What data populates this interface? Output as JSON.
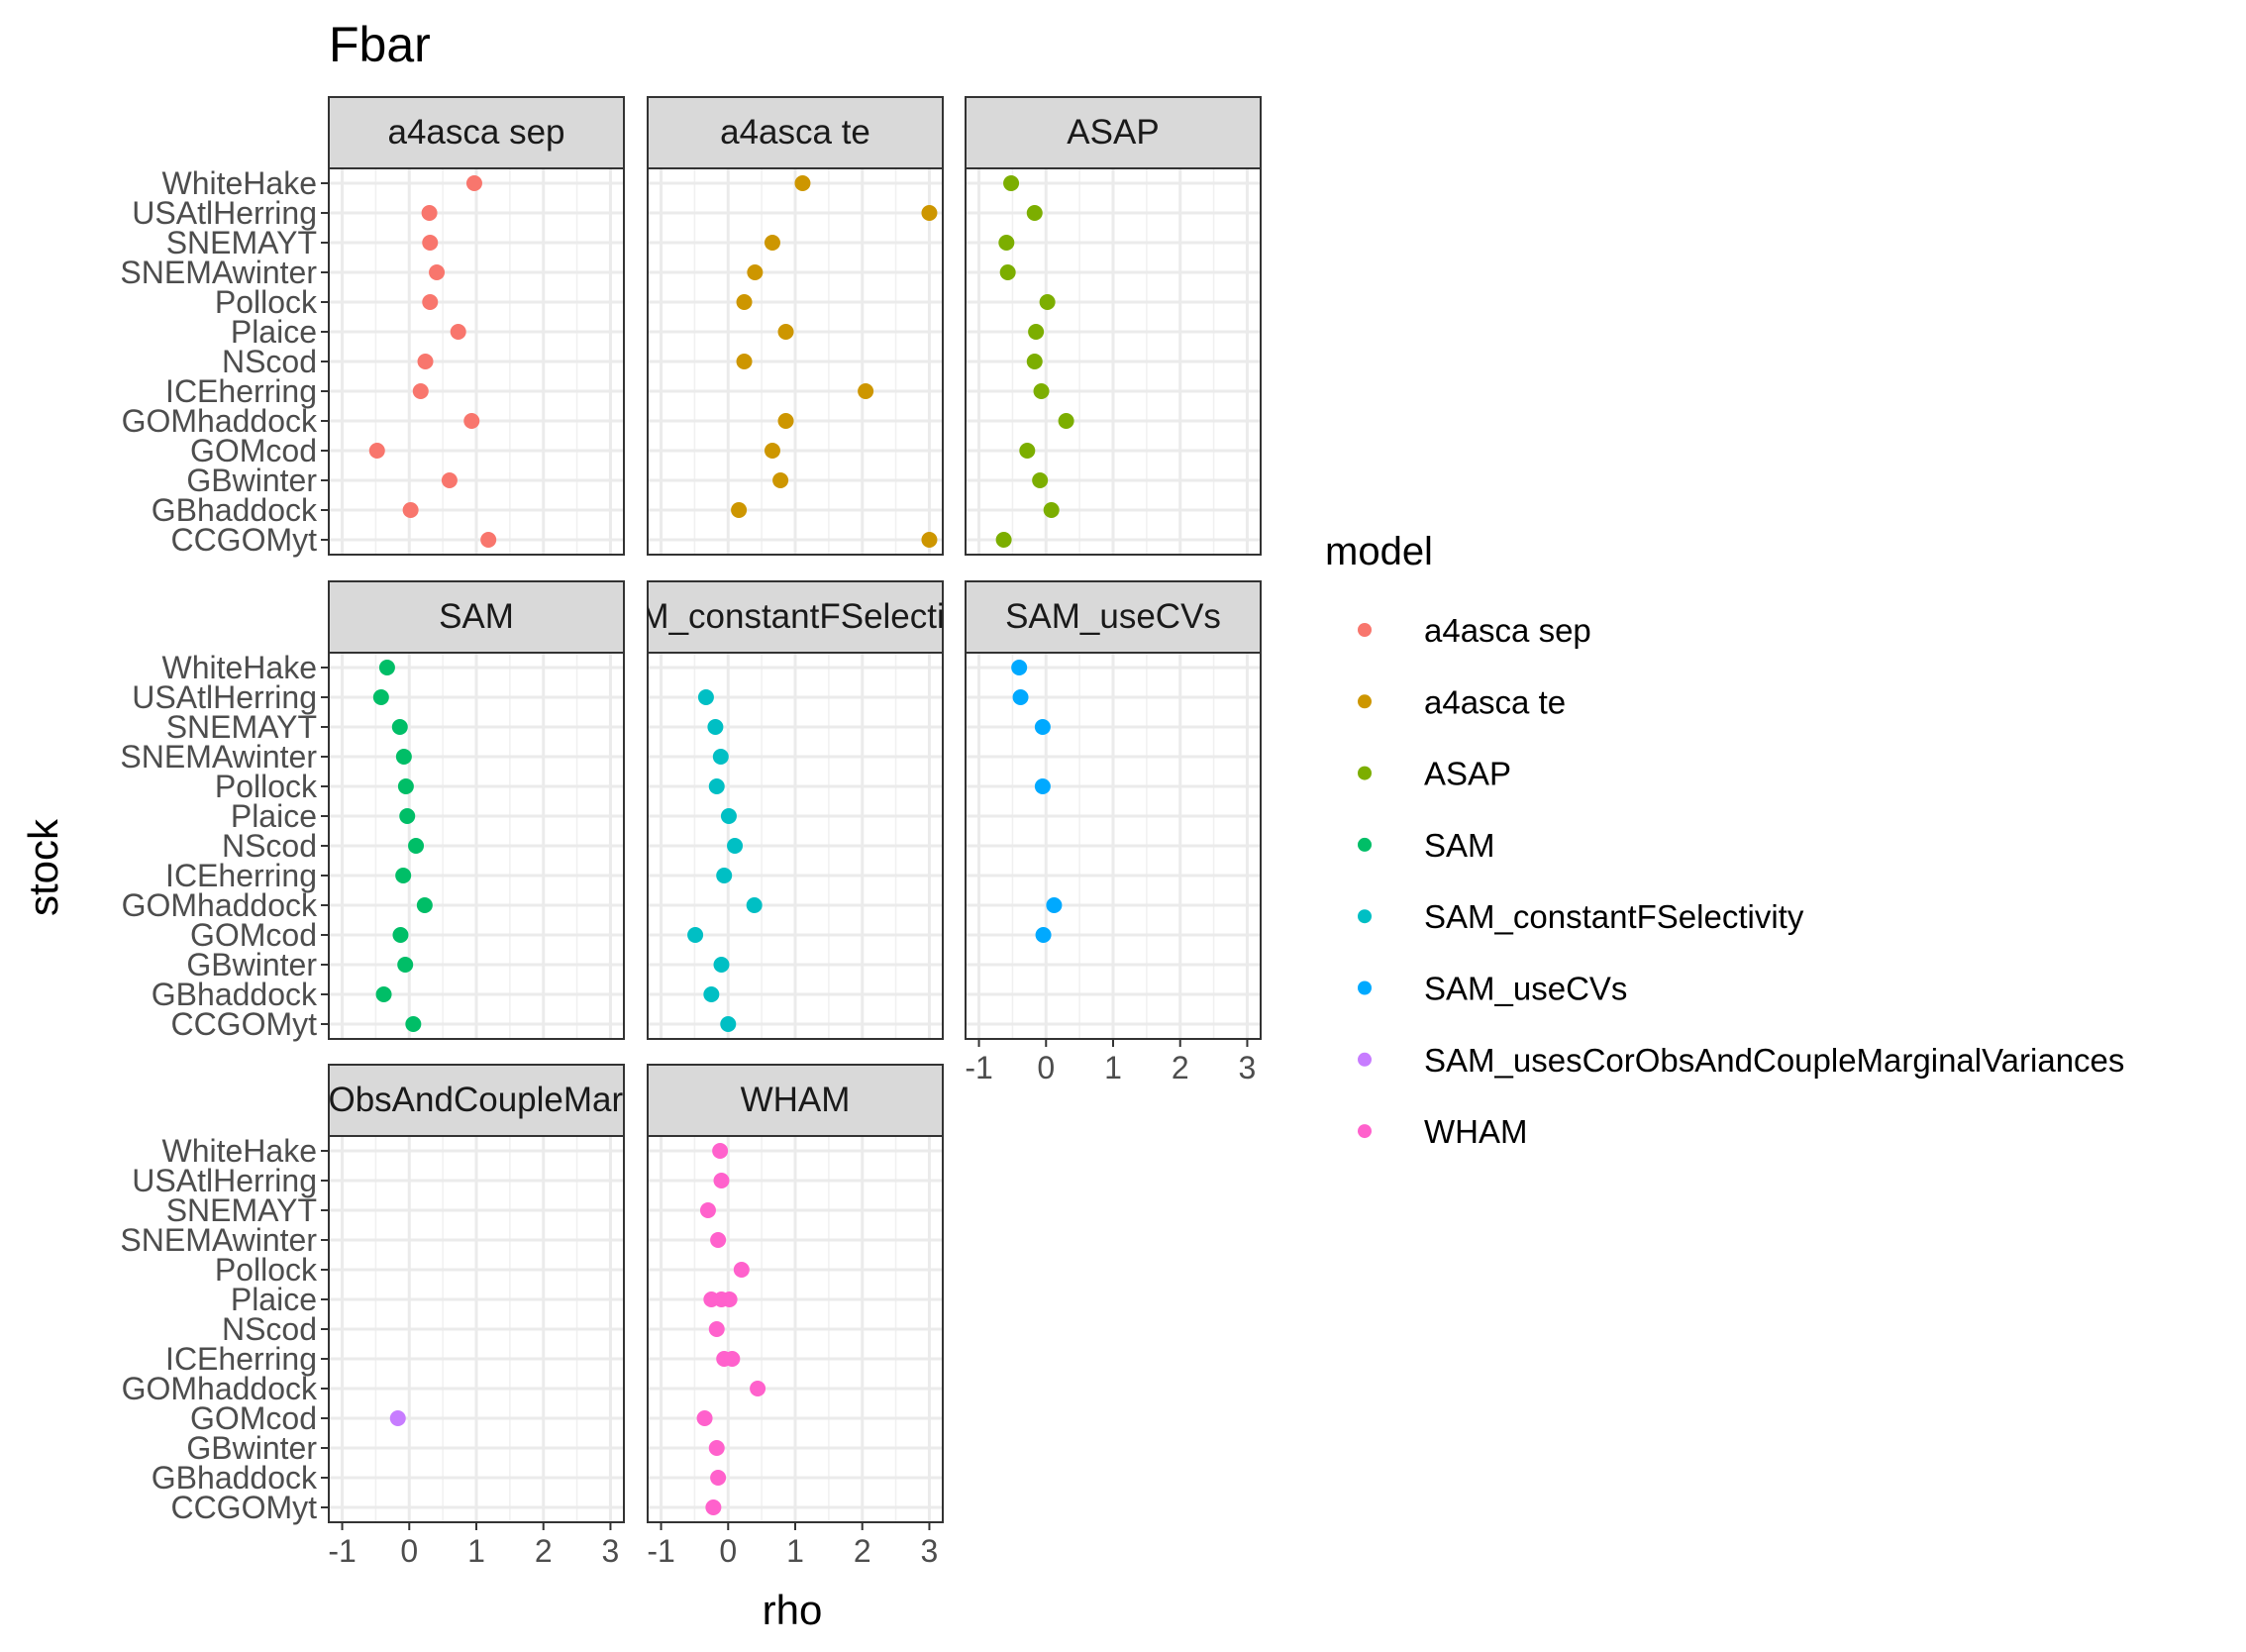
{
  "chart_data": {
    "type": "scatter",
    "title": "Fbar",
    "xlabel": "rho",
    "ylabel": "stock",
    "xlim": [
      -1.2,
      3.2
    ],
    "x_ticks": [
      -1,
      0,
      1,
      2,
      3
    ],
    "x_tick_labels": [
      "-1",
      "0",
      "1",
      "2",
      "3"
    ],
    "grid": true,
    "stocks": [
      "WhiteHake",
      "USAtlHerring",
      "SNEMAYT",
      "SNEMAwinter",
      "Pollock",
      "Plaice",
      "NScod",
      "ICEherring",
      "GOMhaddock",
      "GOMcod",
      "GBwinter",
      "GBhaddock",
      "CCGOMyt"
    ],
    "legend": {
      "title": "model",
      "placement": "right",
      "entries": [
        {
          "label": "a4asca sep",
          "color": "#F8766D"
        },
        {
          "label": "a4asca te",
          "color": "#CD9600"
        },
        {
          "label": "ASAP",
          "color": "#7CAE00"
        },
        {
          "label": "SAM",
          "color": "#00BE67"
        },
        {
          "label": "SAM_constantFSelectivity",
          "color": "#00BFC4"
        },
        {
          "label": "SAM_useCVs",
          "color": "#00A9FF"
        },
        {
          "label": "SAM_usesCorObsAndCoupleMarginalVariances",
          "color": "#C77CFF"
        },
        {
          "label": "WHAM",
          "color": "#FF61CC"
        }
      ]
    },
    "panels": [
      {
        "strip": "a4asca sep",
        "color": "#F8766D",
        "points": [
          [
            "WhiteHake",
            0.97
          ],
          [
            "USAtlHerring",
            0.3
          ],
          [
            "SNEMAYT",
            0.31
          ],
          [
            "SNEMAwinter",
            0.41
          ],
          [
            "Pollock",
            0.31
          ],
          [
            "Plaice",
            0.73
          ],
          [
            "NScod",
            0.24
          ],
          [
            "ICEherring",
            0.17
          ],
          [
            "GOMhaddock",
            0.93
          ],
          [
            "GOMcod",
            -0.48
          ],
          [
            "GBwinter",
            0.6
          ],
          [
            "GBhaddock",
            0.02
          ],
          [
            "CCGOMyt",
            1.18
          ]
        ]
      },
      {
        "strip": "a4asca te",
        "color": "#CD9600",
        "points": [
          [
            "WhiteHake",
            1.11
          ],
          [
            "USAtlHerring",
            3.0
          ],
          [
            "SNEMAYT",
            0.66
          ],
          [
            "SNEMAwinter",
            0.4
          ],
          [
            "Pollock",
            0.24
          ],
          [
            "Plaice",
            0.86
          ],
          [
            "NScod",
            0.24
          ],
          [
            "ICEherring",
            2.05
          ],
          [
            "GOMhaddock",
            0.86
          ],
          [
            "GOMcod",
            0.66
          ],
          [
            "GBwinter",
            0.78
          ],
          [
            "GBhaddock",
            0.16
          ],
          [
            "CCGOMyt",
            3.0
          ]
        ]
      },
      {
        "strip": "ASAP",
        "color": "#7CAE00",
        "points": [
          [
            "WhiteHake",
            -0.52
          ],
          [
            "USAtlHerring",
            -0.17
          ],
          [
            "SNEMAYT",
            -0.59
          ],
          [
            "SNEMAwinter",
            -0.57
          ],
          [
            "Pollock",
            0.02
          ],
          [
            "Plaice",
            -0.15
          ],
          [
            "NScod",
            -0.17
          ],
          [
            "ICEherring",
            -0.07
          ],
          [
            "GOMhaddock",
            0.3
          ],
          [
            "GOMcod",
            -0.28
          ],
          [
            "GBwinter",
            -0.09
          ],
          [
            "GBhaddock",
            0.08
          ],
          [
            "CCGOMyt",
            -0.63
          ]
        ]
      },
      {
        "strip": "SAM",
        "color": "#00BE67",
        "points": [
          [
            "WhiteHake",
            -0.33
          ],
          [
            "USAtlHerring",
            -0.42
          ],
          [
            "SNEMAYT",
            -0.14
          ],
          [
            "SNEMAwinter",
            -0.08
          ],
          [
            "Pollock",
            -0.05
          ],
          [
            "Plaice",
            -0.03
          ],
          [
            "NScod",
            0.1
          ],
          [
            "ICEherring",
            -0.09
          ],
          [
            "GOMhaddock",
            0.23
          ],
          [
            "GOMcod",
            -0.13
          ],
          [
            "GBwinter",
            -0.06
          ],
          [
            "GBhaddock",
            -0.38
          ],
          [
            "CCGOMyt",
            0.06
          ]
        ]
      },
      {
        "strip": "SAM_constantFSelectivity",
        "color": "#00BFC4",
        "points": [
          [
            "USAtlHerring",
            -0.33
          ],
          [
            "SNEMAYT",
            -0.19
          ],
          [
            "SNEMAwinter",
            -0.11
          ],
          [
            "Pollock",
            -0.17
          ],
          [
            "Plaice",
            0.01
          ],
          [
            "NScod",
            0.1
          ],
          [
            "ICEherring",
            -0.06
          ],
          [
            "GOMhaddock",
            0.39
          ],
          [
            "GOMcod",
            -0.49
          ],
          [
            "GBwinter",
            -0.1
          ],
          [
            "GBhaddock",
            -0.25
          ],
          [
            "CCGOMyt",
            0.0
          ]
        ]
      },
      {
        "strip": "SAM_useCVs",
        "color": "#00A9FF",
        "points": [
          [
            "WhiteHake",
            -0.4
          ],
          [
            "USAtlHerring",
            -0.38
          ],
          [
            "SNEMAYT",
            -0.05
          ],
          [
            "Pollock",
            -0.05
          ],
          [
            "GOMhaddock",
            0.12
          ],
          [
            "GOMcod",
            -0.04
          ]
        ]
      },
      {
        "strip": "SAM_usesCorObsAndCoupleMarginalVariances",
        "color": "#C77CFF",
        "points": [
          [
            "GOMcod",
            -0.17
          ]
        ]
      },
      {
        "strip": "WHAM",
        "color": "#FF61CC",
        "points": [
          [
            "WhiteHake",
            -0.12
          ],
          [
            "USAtlHerring",
            -0.1
          ],
          [
            "SNEMAYT",
            -0.3
          ],
          [
            "SNEMAwinter",
            -0.15
          ],
          [
            "Pollock",
            0.2
          ],
          [
            "Plaice",
            -0.25
          ],
          [
            "Plaice",
            -0.1
          ],
          [
            "Plaice",
            0.02
          ],
          [
            "NScod",
            -0.17
          ],
          [
            "ICEherring",
            -0.06
          ],
          [
            "ICEherring",
            0.06
          ],
          [
            "GOMhaddock",
            0.44
          ],
          [
            "GOMcod",
            -0.35
          ],
          [
            "GBwinter",
            -0.17
          ],
          [
            "GBhaddock",
            -0.15
          ],
          [
            "CCGOMyt",
            -0.22
          ]
        ]
      }
    ]
  }
}
